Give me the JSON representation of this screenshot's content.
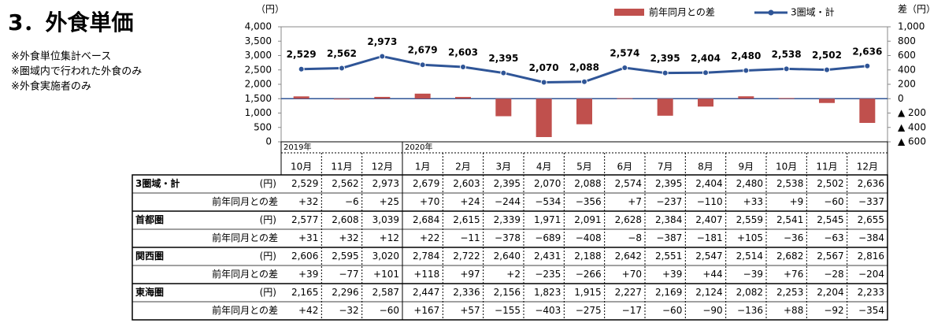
{
  "header": {
    "title": "3．外食単価",
    "notes": [
      "※外食単位集計ベース",
      "※圏域内で行われた外食のみ",
      "※外食実施者のみ"
    ]
  },
  "chart_data": {
    "type": "combo",
    "ylabel": "（円）",
    "y2label": "差（円）",
    "categories": [
      "10月",
      "11月",
      "12月",
      "1月",
      "2月",
      "3月",
      "4月",
      "5月",
      "6月",
      "7月",
      "8月",
      "9月",
      "10月",
      "11月",
      "12月"
    ],
    "year_labels": [
      "2019年",
      null,
      null,
      "2020年",
      null,
      null,
      null,
      null,
      null,
      null,
      null,
      null,
      null,
      null,
      null
    ],
    "ylim": [
      0,
      4000
    ],
    "yticks": [
      0,
      500,
      {
        "value": 1000,
        "label": "1,000"
      },
      {
        "value": 1500,
        "label": "1,500"
      },
      {
        "value": 2000,
        "label": "2,000"
      },
      {
        "value": 2500,
        "label": "2,500"
      },
      {
        "value": 3000,
        "label": "3,000"
      },
      {
        "value": 3500,
        "label": "3,500"
      },
      {
        "value": 4000,
        "label": "4,000"
      }
    ],
    "y2lim": [
      -600,
      1000
    ],
    "y2ticks": [
      {
        "value": -600,
        "label": "▲ 600"
      },
      {
        "value": -400,
        "label": "▲ 400"
      },
      {
        "value": -200,
        "label": "▲ 200"
      },
      0,
      200,
      400,
      600,
      800,
      {
        "value": 1000,
        "label": "1,000"
      }
    ],
    "series": [
      {
        "name": "前年同月との差",
        "type": "bar",
        "axis": "y2",
        "color": "#c0504d",
        "values": [
          32,
          -6,
          25,
          70,
          24,
          -244,
          -534,
          -356,
          7,
          -237,
          -110,
          33,
          9,
          -60,
          -337
        ],
        "value_labels": [
          "+32",
          "−6",
          "+25",
          "+70",
          "+24",
          "−244",
          "−534",
          "−356",
          "+7",
          "−237",
          "−110",
          "+33",
          "+9",
          "−60",
          "−337"
        ]
      },
      {
        "name": "3圏域・計",
        "type": "line",
        "color": "#2f5597",
        "values": [
          2529,
          2562,
          2973,
          2679,
          2603,
          2395,
          2070,
          2088,
          2574,
          2395,
          2404,
          2480,
          2538,
          2502,
          2636
        ],
        "value_labels": [
          "2,529",
          "2,562",
          "2,973",
          "2,679",
          "2,603",
          "2,395",
          "2,070",
          "2,088",
          "2,574",
          "2,395",
          "2,404",
          "2,480",
          "2,538",
          "2,502",
          "2,636"
        ]
      }
    ]
  },
  "table": {
    "unit": "(円)",
    "rows": [
      {
        "name": "首都圏",
        "values": [
          "2,577",
          "2,608",
          "3,039",
          "2,684",
          "2,615",
          "2,339",
          "1,971",
          "2,091",
          "2,628",
          "2,384",
          "2,407",
          "2,559",
          "2,541",
          "2,545",
          "2,655"
        ],
        "diffs": [
          "+31",
          "+32",
          "+12",
          "+22",
          "−11",
          "−378",
          "−689",
          "−408",
          "−8",
          "−387",
          "−181",
          "+105",
          "−36",
          "−63",
          "−384"
        ]
      },
      {
        "name": "関西圏",
        "values": [
          "2,606",
          "2,595",
          "3,020",
          "2,784",
          "2,722",
          "2,640",
          "2,431",
          "2,188",
          "2,642",
          "2,551",
          "2,547",
          "2,514",
          "2,682",
          "2,567",
          "2,816"
        ],
        "diffs": [
          "+39",
          "−77",
          "+101",
          "+118",
          "+97",
          "+2",
          "−235",
          "−266",
          "+70",
          "+39",
          "+44",
          "−39",
          "+76",
          "−28",
          "−204"
        ]
      },
      {
        "name": "東海圏",
        "values": [
          "2,165",
          "2,296",
          "2,587",
          "2,447",
          "2,336",
          "2,156",
          "1,823",
          "1,915",
          "2,227",
          "2,169",
          "2,124",
          "2,082",
          "2,253",
          "2,204",
          "2,233"
        ],
        "diffs": [
          "+42",
          "−32",
          "−60",
          "+167",
          "+57",
          "−155",
          "−403",
          "−275",
          "−17",
          "−60",
          "−90",
          "−136",
          "+88",
          "−92",
          "−354"
        ]
      }
    ]
  }
}
